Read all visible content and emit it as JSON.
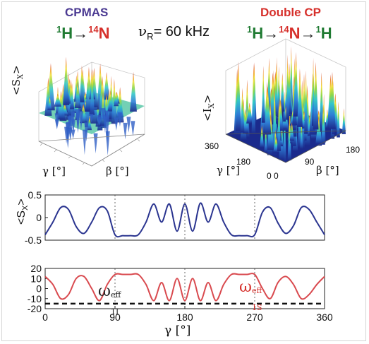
{
  "top_left": {
    "title": "CPMAS",
    "reaction": [
      {
        "mass": "1",
        "sym": "H"
      },
      {
        "mass": "14",
        "sym": "N"
      }
    ],
    "zlabel": "<S",
    "zlabel_sub": "X",
    "zlabel_end": ">",
    "xlabel": "γ [°]",
    "ylabel": "β [°]"
  },
  "center": {
    "nu": "ν",
    "nu_sub": "R",
    "value": "= 60 kHz"
  },
  "top_right": {
    "title": "Double CP",
    "reaction": [
      {
        "mass": "1",
        "sym": "H"
      },
      {
        "mass": "14",
        "sym": "N"
      },
      {
        "mass": "1",
        "sym": "H"
      }
    ],
    "zlabel": "<I",
    "zlabel_sub": "X",
    "zlabel_end": ">",
    "xlabel": "γ [°]",
    "ylabel": "β [°]",
    "gamma_ticks": [
      "360",
      "180",
      "0"
    ],
    "beta_ticks": [
      "0",
      "90",
      "180"
    ]
  },
  "arrow": "→",
  "chart_data": [
    {
      "type": "line",
      "ylabel": "<S",
      "ylabel_sub": "X",
      "ylabel_end": ">",
      "yticks": [
        "0.5",
        "0",
        "-0.5"
      ],
      "ylim": [
        -0.5,
        0.5
      ],
      "xlim": [
        0,
        360
      ],
      "x": [
        0,
        10,
        20,
        30,
        40,
        50,
        60,
        70,
        80,
        90,
        100,
        110,
        120,
        130,
        140,
        150,
        160,
        170,
        180,
        190,
        200,
        210,
        220,
        230,
        240,
        250,
        260,
        270,
        280,
        290,
        300,
        310,
        320,
        330,
        340,
        350,
        360
      ],
      "series": [
        {
          "color": "#2b3590",
          "values": [
            -0.38,
            -0.1,
            0.22,
            0.18,
            -0.2,
            -0.35,
            -0.1,
            0.22,
            0.15,
            -0.38,
            -0.4,
            -0.4,
            -0.38,
            -0.1,
            0.3,
            -0.1,
            0.3,
            -0.3,
            0.3,
            -0.3,
            0.32,
            -0.1,
            0.3,
            -0.1,
            -0.38,
            -0.4,
            -0.4,
            -0.38,
            0.12,
            0.22,
            -0.12,
            -0.35,
            -0.18,
            0.22,
            0.18,
            -0.1,
            -0.38
          ]
        }
      ],
      "vgrid": [
        90,
        180,
        270
      ]
    },
    {
      "type": "line",
      "yticks": [
        "20",
        "10",
        "0",
        "-10",
        "-20"
      ],
      "ylim": [
        -20,
        20
      ],
      "xlim": [
        0,
        360
      ],
      "xticks": [
        "0",
        "90",
        "180",
        "270",
        "360"
      ],
      "xlabel": "γ [°]",
      "x": [
        0,
        10,
        20,
        30,
        40,
        50,
        60,
        70,
        80,
        90,
        100,
        110,
        120,
        130,
        140,
        150,
        160,
        170,
        180,
        190,
        200,
        210,
        220,
        230,
        240,
        250,
        260,
        270,
        280,
        290,
        300,
        310,
        320,
        330,
        340,
        350,
        360
      ],
      "series": [
        {
          "color": "#d94a4f",
          "values": [
            12,
            4,
            -10,
            -6,
            10,
            12,
            0,
            -12,
            4,
            14,
            14,
            14,
            14,
            4,
            -12,
            6,
            -12,
            10,
            -12,
            10,
            -12,
            6,
            -12,
            4,
            14,
            14,
            14,
            14,
            0,
            -10,
            6,
            12,
            4,
            -10,
            -6,
            4,
            12
          ]
        },
        {
          "color": "#111111",
          "dashed": true,
          "values": [
            -15,
            -15,
            -15,
            -15,
            -15,
            -15,
            -15,
            -15,
            -15,
            -15,
            -15,
            -15,
            -15,
            -15,
            -15,
            -15,
            -15,
            -15,
            -15,
            -15,
            -15,
            -15,
            -15,
            -15,
            -15,
            -15,
            -15,
            -15,
            -15,
            -15,
            -15,
            -15,
            -15,
            -15,
            -15,
            -15,
            -15
          ]
        }
      ],
      "annotations": [
        {
          "text": "ω",
          "sub": "1I",
          "sup": "eff",
          "color": "#222222"
        },
        {
          "text": "ω",
          "sub": "1S",
          "sup": "eff",
          "color": "#d6302b"
        }
      ],
      "vgrid": [
        90,
        180,
        270
      ]
    }
  ]
}
